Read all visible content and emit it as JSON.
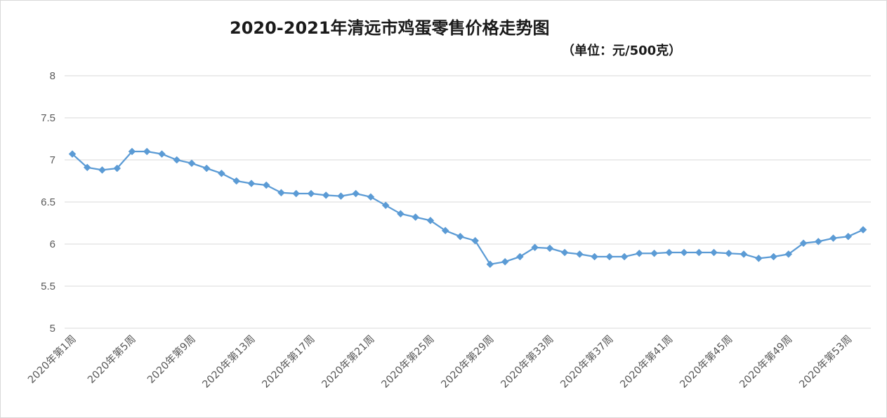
{
  "chart_data": {
    "type": "line",
    "title": "2020-2021年清远市鸡蛋零售价格走势图",
    "subtitle": "（单位：元/500克）",
    "xlabel": "",
    "ylabel": "",
    "ylim": [
      5,
      8
    ],
    "yticks": [
      5,
      5.5,
      6,
      6.5,
      7,
      7.5,
      8
    ],
    "grid": true,
    "legend": "none",
    "line_color": "#5b9bd5",
    "gridline_color": "#d9d9d9",
    "x": [
      "2020年第1周",
      "2020年第2周",
      "2020年第3周",
      "2020年第4周",
      "2020年第5周",
      "2020年第6周",
      "2020年第7周",
      "2020年第8周",
      "2020年第9周",
      "2020年第10周",
      "2020年第11周",
      "2020年第12周",
      "2020年第13周",
      "2020年第14周",
      "2020年第15周",
      "2020年第16周",
      "2020年第17周",
      "2020年第18周",
      "2020年第19周",
      "2020年第20周",
      "2020年第21周",
      "2020年第22周",
      "2020年第23周",
      "2020年第24周",
      "2020年第25周",
      "2020年第26周",
      "2020年第27周",
      "2020年第28周",
      "2020年第29周",
      "2020年第30周",
      "2020年第31周",
      "2020年第32周",
      "2020年第33周",
      "2020年第34周",
      "2020年第35周",
      "2020年第36周",
      "2020年第37周",
      "2020年第38周",
      "2020年第39周",
      "2020年第40周",
      "2020年第41周",
      "2020年第42周",
      "2020年第43周",
      "2020年第44周",
      "2020年第45周",
      "2020年第46周",
      "2020年第47周",
      "2020年第48周",
      "2020年第49周",
      "2020年第50周",
      "2020年第51周",
      "2020年第52周",
      "2020年第53周",
      "2020年第54周"
    ],
    "x_tick_labels_shown": [
      "2020年第1周",
      "2020年第5周",
      "2020年第9周",
      "2020年第13周",
      "2020年第17周",
      "2020年第21周",
      "2020年第25周",
      "2020年第29周",
      "2020年第33周",
      "2020年第37周",
      "2020年第41周",
      "2020年第45周",
      "2020年第49周",
      "2020年第53周"
    ],
    "series": [
      {
        "values": [
          7.07,
          6.91,
          6.88,
          6.9,
          7.1,
          7.1,
          7.07,
          7.0,
          6.96,
          6.9,
          6.84,
          6.75,
          6.72,
          6.7,
          6.61,
          6.6,
          6.6,
          6.58,
          6.57,
          6.6,
          6.56,
          6.46,
          6.36,
          6.32,
          6.28,
          6.16,
          6.09,
          6.04,
          5.76,
          5.79,
          5.85,
          5.96,
          5.95,
          5.9,
          5.88,
          5.85,
          5.85,
          5.85,
          5.89,
          5.89,
          5.9,
          5.9,
          5.9,
          5.9,
          5.89,
          5.88,
          5.83,
          5.85,
          5.88,
          6.01,
          6.03,
          6.07,
          6.09,
          6.17
        ]
      }
    ]
  }
}
